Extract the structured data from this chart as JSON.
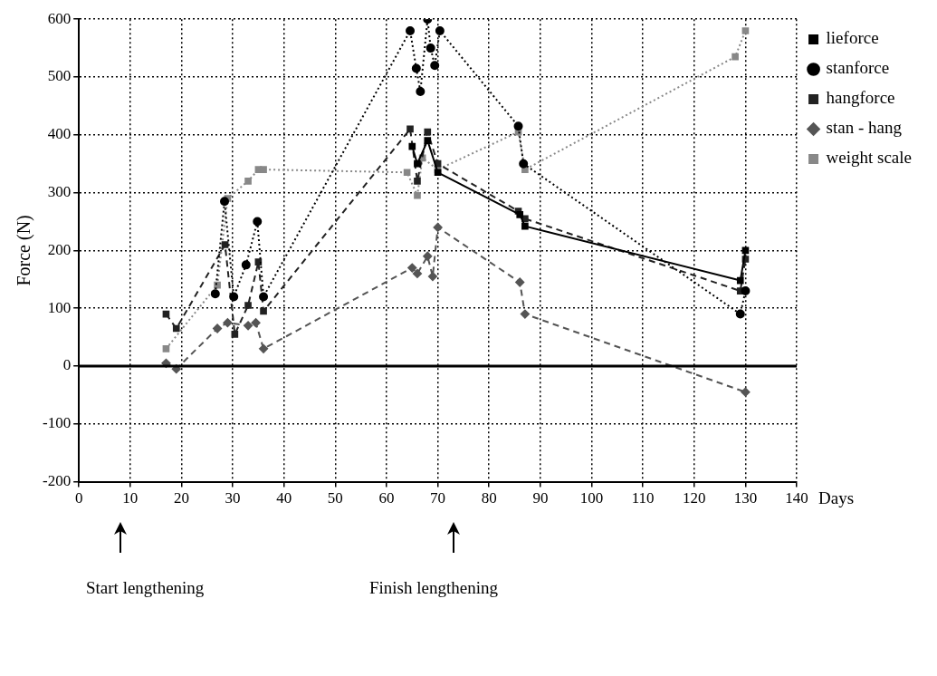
{
  "chart_data": {
    "type": "line",
    "xlabel": "Days",
    "ylabel": "Force (N)",
    "xlim": [
      0,
      140
    ],
    "xticks": [
      0,
      10,
      20,
      30,
      40,
      50,
      60,
      70,
      80,
      90,
      100,
      110,
      120,
      130,
      140
    ],
    "ylim": [
      -200,
      600
    ],
    "yticks": [
      -200,
      -100,
      0,
      100,
      200,
      300,
      400,
      500,
      600
    ],
    "grid": true,
    "legend": "top right",
    "ref_lines": [
      {
        "axis": "y",
        "value": 0,
        "color": "#000000",
        "line_style": "solid"
      }
    ],
    "annotations": [
      "Start lengthening",
      "Finish lengthening"
    ],
    "series": [
      {
        "name": "lieforce",
        "color": "#000000",
        "marker": "square",
        "line_style": "solid",
        "x": [
          65,
          66,
          68,
          70,
          86,
          87,
          129,
          130
        ],
        "values": [
          380,
          350,
          390,
          335,
          262,
          242,
          148,
          200
        ]
      },
      {
        "name": "stanforce",
        "color": "#000000",
        "marker": "circle",
        "line_style": "dotted",
        "x": [
          26.6,
          28.4,
          30.2,
          32.6,
          34.8,
          36,
          64.6,
          65.8,
          66.6,
          68,
          68.6,
          69.4,
          70.4,
          85.7,
          86.7,
          129,
          130
        ],
        "values": [
          125,
          285,
          120,
          175,
          250,
          120,
          580,
          515,
          475,
          600,
          550,
          520,
          580,
          415,
          350,
          90,
          130
        ]
      },
      {
        "name": "hangforce",
        "color": "#222222",
        "marker": "square",
        "line_style": "dashed",
        "x": [
          17,
          19,
          28.5,
          30.4,
          33,
          35,
          36,
          64.6,
          66,
          68,
          70,
          85.7,
          87,
          129,
          130
        ],
        "values": [
          90,
          65,
          210,
          55,
          105,
          180,
          95,
          410,
          320,
          405,
          350,
          268,
          255,
          130,
          185
        ]
      },
      {
        "name": "stan - hang",
        "color": "#555555",
        "marker": "diamond",
        "line_style": "dashed",
        "x": [
          17,
          19,
          27,
          29,
          33,
          34.5,
          36,
          65,
          66,
          68,
          69,
          70,
          86,
          87,
          130
        ],
        "values": [
          5,
          -5,
          65,
          75,
          70,
          75,
          30,
          170,
          160,
          190,
          155,
          240,
          145,
          90,
          -45
        ]
      },
      {
        "name": "weight scale",
        "color": "#888888",
        "marker": "square",
        "line_style": "dotted",
        "x": [
          17,
          27,
          29,
          33,
          35,
          36,
          64,
          66,
          67,
          70,
          85.7,
          87,
          128,
          130
        ],
        "values": [
          30,
          140,
          290,
          320,
          340,
          340,
          335,
          295,
          360,
          340,
          405,
          340,
          535,
          580
        ]
      }
    ]
  }
}
